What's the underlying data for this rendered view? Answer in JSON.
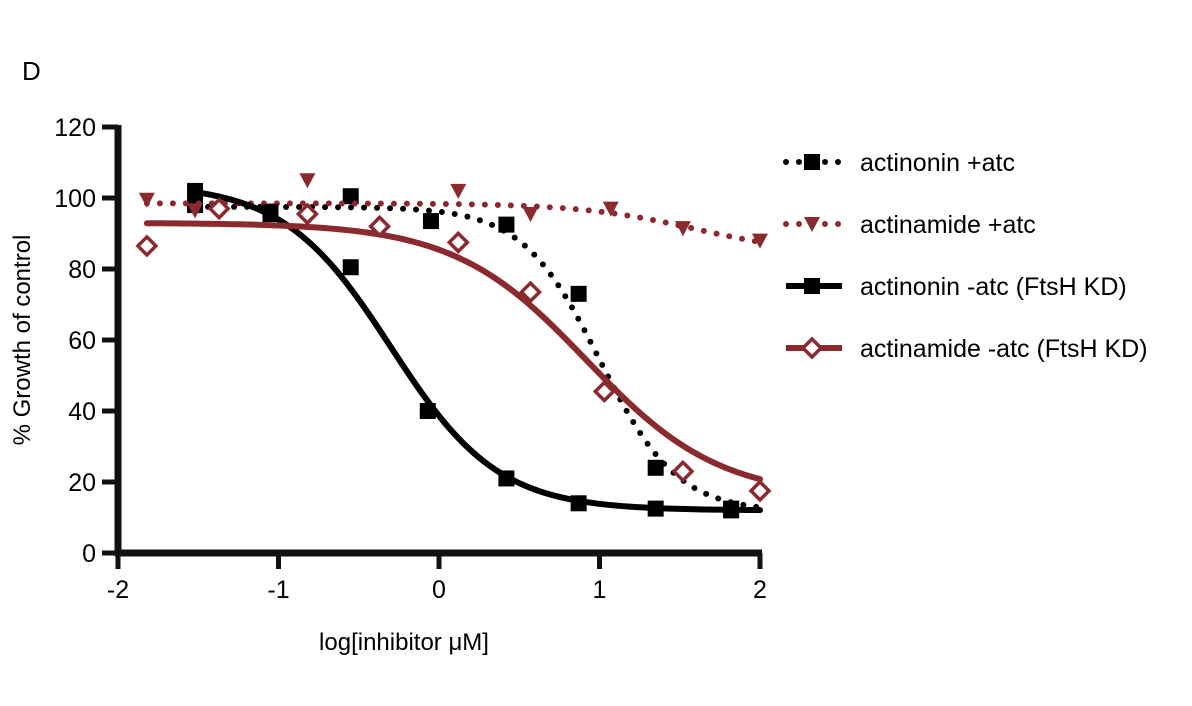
{
  "chart_data": {
    "type": "scatter",
    "panel_label": "D",
    "title": "",
    "xlabel": "log[inhibitor μM]",
    "ylabel": "% Growth of control",
    "xlim": [
      -2,
      2
    ],
    "ylim": [
      0,
      120
    ],
    "xticks": [
      "-2",
      "-1",
      "0",
      "1",
      "2"
    ],
    "yticks": [
      "0",
      "20",
      "40",
      "60",
      "80",
      "100",
      "120"
    ],
    "grid": false,
    "legend_position": "right",
    "series": [
      {
        "name": "actinonin +atc",
        "color": "#000000",
        "marker": "square",
        "line_style": "dotted",
        "points": [
          [
            -1.52,
            98
          ],
          [
            -1.05,
            95.5
          ],
          [
            -0.55,
            100.5
          ],
          [
            -0.05,
            93.5
          ],
          [
            0.42,
            92.5
          ],
          [
            0.87,
            73
          ],
          [
            1.35,
            24
          ],
          [
            1.82,
            12.5
          ]
        ],
        "fit": {
          "top": 97.5,
          "bottom": 11.5,
          "logIC50": 1.0,
          "hill": -1.8
        }
      },
      {
        "name": "actinamide +atc",
        "color": "#8B2A2E",
        "marker": "triangle-down",
        "line_style": "dotted",
        "points": [
          [
            -1.82,
            99.5
          ],
          [
            -1.52,
            96.5
          ],
          [
            -1.05,
            96.5
          ],
          [
            -0.82,
            105
          ],
          [
            0.12,
            102
          ],
          [
            0.57,
            95.5
          ],
          [
            1.07,
            97
          ],
          [
            1.52,
            91.5
          ],
          [
            2.0,
            88
          ]
        ],
        "fit": {
          "top": 98.5,
          "bottom": 84,
          "logIC50": 1.6,
          "hill": -1.2
        }
      },
      {
        "name": "actinonin -atc (FtsH KD)",
        "color": "#000000",
        "marker": "square",
        "line_style": "solid",
        "points": [
          [
            -1.52,
            102
          ],
          [
            -1.05,
            96
          ],
          [
            -0.55,
            80.5
          ],
          [
            -0.07,
            40
          ],
          [
            0.42,
            21
          ],
          [
            0.87,
            14
          ],
          [
            1.35,
            12.5
          ],
          [
            1.82,
            12
          ]
        ],
        "fit": {
          "top": 104,
          "bottom": 12,
          "logIC50": -0.3,
          "hill": -1.3
        }
      },
      {
        "name": "actinamide -atc (FtsH KD)",
        "color": "#8B2A2E",
        "marker": "diamond",
        "line_style": "solid",
        "points": [
          [
            -1.82,
            86.5
          ],
          [
            -1.37,
            97
          ],
          [
            -0.82,
            95.5
          ],
          [
            -0.37,
            92
          ],
          [
            0.12,
            87.5
          ],
          [
            0.57,
            73.5
          ],
          [
            1.03,
            45.5
          ],
          [
            1.52,
            23
          ],
          [
            2.0,
            17.5
          ]
        ],
        "fit": {
          "top": 93,
          "bottom": 15.5,
          "logIC50": 0.92,
          "hill": -1.05
        }
      }
    ]
  }
}
